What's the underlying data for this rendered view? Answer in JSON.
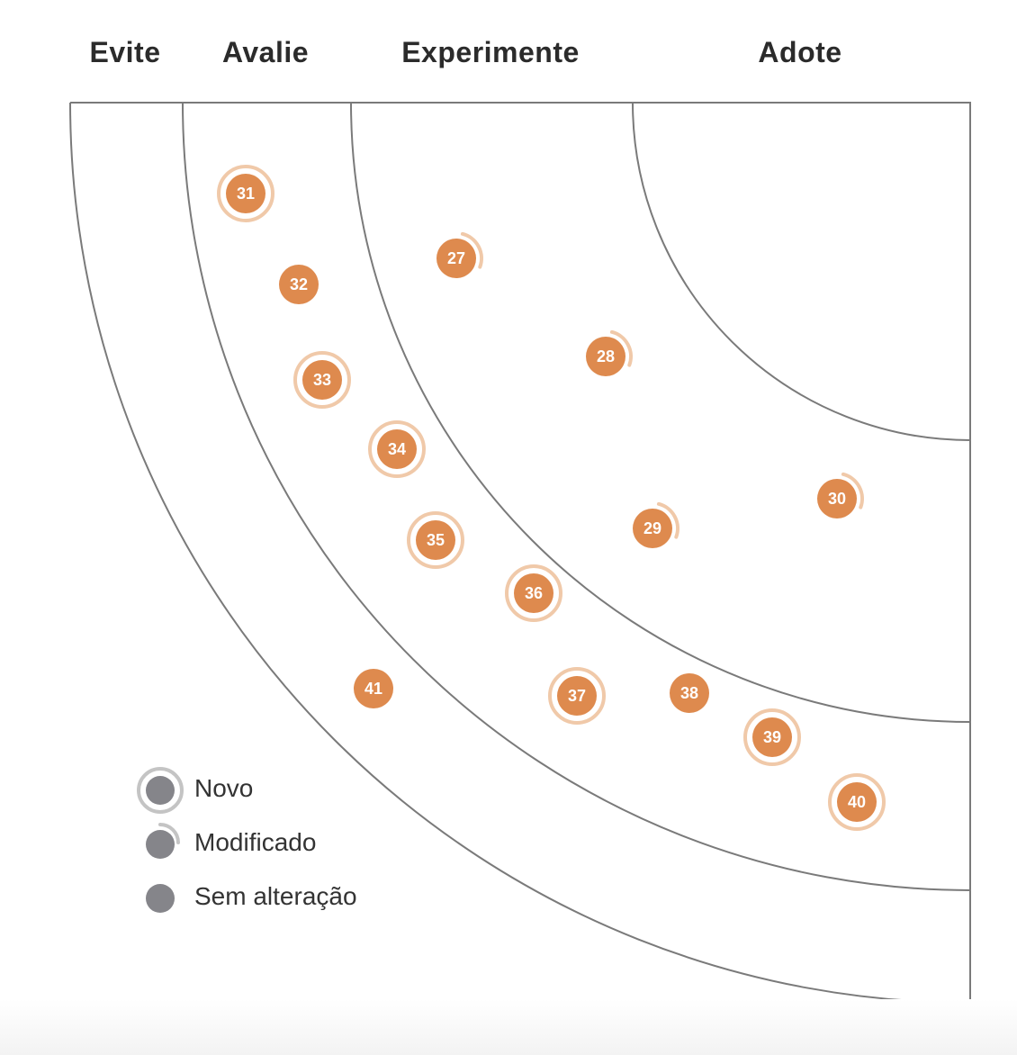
{
  "rings": [
    {
      "key": "evite",
      "label": "Evite"
    },
    {
      "key": "avalie",
      "label": "Avalie"
    },
    {
      "key": "experimente",
      "label": "Experimente"
    },
    {
      "key": "adote",
      "label": "Adote"
    }
  ],
  "legend": {
    "novo": "Novo",
    "modificado": "Modificado",
    "sem_alteracao": "Sem alteração"
  },
  "blips": [
    {
      "number": "27",
      "status": "modificado",
      "ring": "Experimente"
    },
    {
      "number": "28",
      "status": "modificado",
      "ring": "Experimente"
    },
    {
      "number": "29",
      "status": "modificado",
      "ring": "Experimente"
    },
    {
      "number": "30",
      "status": "modificado",
      "ring": "Experimente"
    },
    {
      "number": "31",
      "status": "novo",
      "ring": "Avalie"
    },
    {
      "number": "32",
      "status": "sem_alteracao",
      "ring": "Avalie"
    },
    {
      "number": "33",
      "status": "novo",
      "ring": "Avalie"
    },
    {
      "number": "34",
      "status": "novo",
      "ring": "Avalie"
    },
    {
      "number": "35",
      "status": "novo",
      "ring": "Avalie"
    },
    {
      "number": "36",
      "status": "novo",
      "ring": "Avalie"
    },
    {
      "number": "37",
      "status": "novo",
      "ring": "Avalie"
    },
    {
      "number": "38",
      "status": "sem_alteracao",
      "ring": "Avalie"
    },
    {
      "number": "39",
      "status": "novo",
      "ring": "Avalie"
    },
    {
      "number": "40",
      "status": "novo",
      "ring": "Avalie"
    },
    {
      "number": "41",
      "status": "sem_alteracao",
      "ring": "Evite"
    }
  ],
  "colors": {
    "blip_fill": "#de8a4e",
    "blip_ring": "#f0c9a9",
    "blip_text": "#ffffff",
    "arc_line": "#7a7a7a",
    "legend_fill": "#85858a",
    "legend_ring": "#c4c4c4",
    "label_text": "#2b2b2b"
  }
}
